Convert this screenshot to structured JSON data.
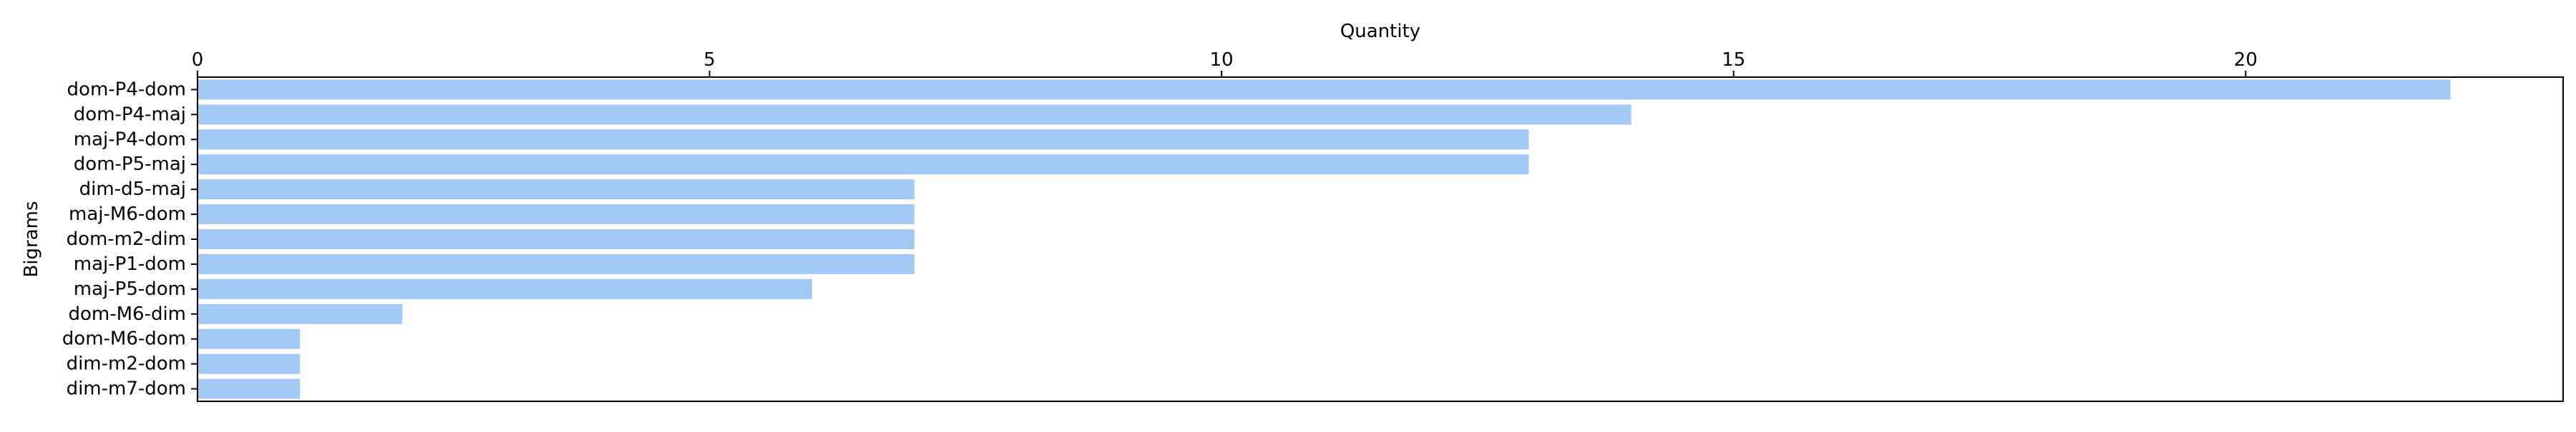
{
  "chart_data": {
    "type": "bar",
    "orientation": "horizontal",
    "xlabel": "Quantity",
    "ylabel": "Bigrams",
    "x_axis_position": "top",
    "xlim": [
      0,
      23.1
    ],
    "xticks": [
      0,
      5,
      10,
      15,
      20
    ],
    "grid": false,
    "bar_color": "#a1c9f4",
    "categories": [
      "dom-P4-dom",
      "dom-P4-maj",
      "maj-P4-dom",
      "dom-P5-maj",
      "dim-d5-maj",
      "maj-M6-dom",
      "dom-m2-dim",
      "maj-P1-dom",
      "maj-P5-dom",
      "dom-M6-dim",
      "dom-M6-dom",
      "dim-m2-dom",
      "dim-m7-dom"
    ],
    "values": [
      22,
      14,
      13,
      13,
      7,
      7,
      7,
      7,
      6,
      2,
      1,
      1,
      1
    ]
  }
}
